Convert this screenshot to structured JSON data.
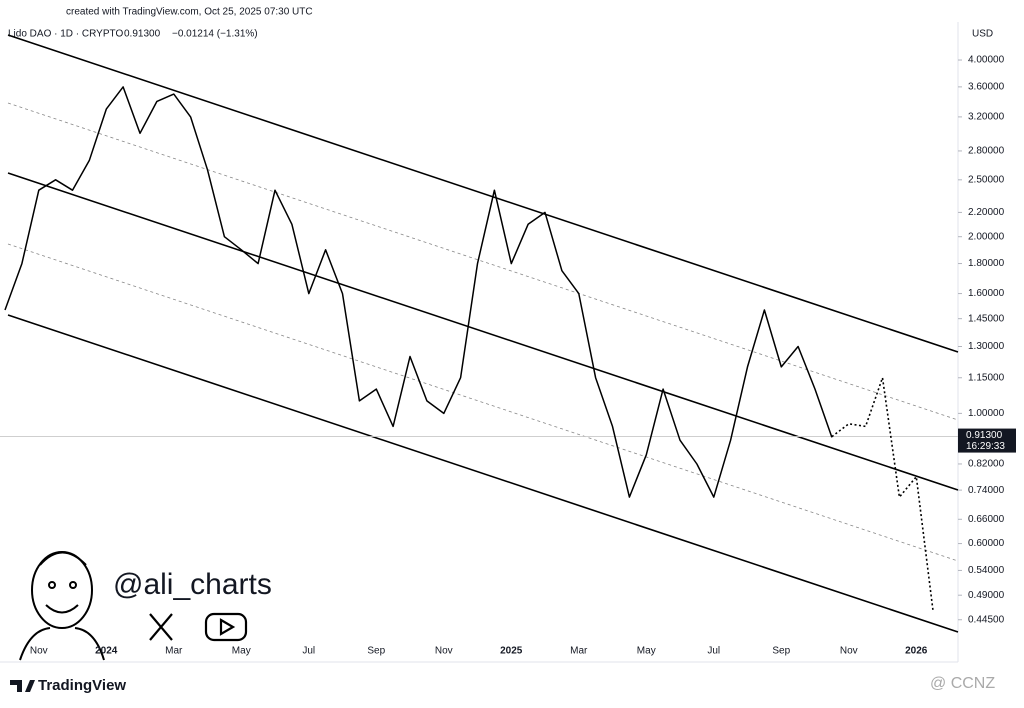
{
  "chart_data": {
    "type": "line",
    "credit": "created with TradingView.com, Oct 25, 2025 07:30 UTC",
    "symbol": "Lido DAO · 1D · CRYPTO",
    "price_text": "0.91300",
    "change_text": "−0.01214 (−1.31%)",
    "currency": "USD",
    "handle": "@ali_charts",
    "brand": "TradingView",
    "watermark": "@ CCNZ",
    "countdown": "16:29:33",
    "log_scale": true,
    "grid": false,
    "last_price": {
      "value": 0.913,
      "label": "0.91300"
    },
    "categories": [
      null,
      null,
      "Nov",
      null,
      null,
      null,
      "2024",
      null,
      null,
      null,
      "Mar",
      null,
      null,
      null,
      "May",
      null,
      null,
      null,
      "Jul",
      null,
      null,
      null,
      "Sep",
      null,
      null,
      null,
      "Nov",
      null,
      null,
      null,
      "2025",
      null,
      null,
      null,
      "Mar",
      null,
      null,
      null,
      "May",
      null,
      null,
      null,
      "Jul",
      null,
      null,
      null,
      "Sep",
      null,
      null,
      null,
      "Nov",
      null,
      null,
      null,
      "2026",
      null
    ],
    "series": [
      {
        "color": "#000000",
        "dash": false,
        "values": [
          1.5,
          1.8,
          2.4,
          2.5,
          2.4,
          2.7,
          3.3,
          3.6,
          3.0,
          3.4,
          3.5,
          3.2,
          2.6,
          2.0,
          1.9,
          1.8,
          2.4,
          2.1,
          1.6,
          1.9,
          1.6,
          1.05,
          1.1,
          0.95,
          1.25,
          1.05,
          1.0,
          1.15,
          1.8,
          2.4,
          1.8,
          2.1,
          2.2,
          1.75,
          1.6,
          1.15,
          0.95,
          0.72,
          0.85,
          1.1,
          0.9,
          0.82,
          0.72,
          0.9,
          1.2,
          1.5,
          1.2,
          1.3,
          1.1,
          0.91,
          null,
          null,
          null,
          null,
          null,
          null
        ]
      },
      {
        "color": "#000000",
        "dash": true,
        "values": [
          null,
          null,
          null,
          null,
          null,
          null,
          null,
          null,
          null,
          null,
          null,
          null,
          null,
          null,
          null,
          null,
          null,
          null,
          null,
          null,
          null,
          null,
          null,
          null,
          null,
          null,
          null,
          null,
          null,
          null,
          null,
          null,
          null,
          null,
          null,
          null,
          null,
          null,
          null,
          null,
          null,
          null,
          null,
          null,
          null,
          null,
          null,
          null,
          null,
          0.913,
          0.96,
          0.95,
          1.15,
          0.72,
          0.78,
          0.46
        ]
      }
    ],
    "ylim": [
      0.38,
      4.5
    ],
    "yticks": [
      {
        "value": 4.0,
        "label": "4.00000"
      },
      {
        "value": 3.6,
        "label": "3.60000"
      },
      {
        "value": 3.2,
        "label": "3.20000"
      },
      {
        "value": 2.8,
        "label": "2.80000"
      },
      {
        "value": 2.5,
        "label": "2.50000"
      },
      {
        "value": 2.2,
        "label": "2.20000"
      },
      {
        "value": 2.0,
        "label": "2.00000"
      },
      {
        "value": 1.8,
        "label": "1.80000"
      },
      {
        "value": 1.6,
        "label": "1.60000"
      },
      {
        "value": 1.45,
        "label": "1.45000"
      },
      {
        "value": 1.3,
        "label": "1.30000"
      },
      {
        "value": 1.15,
        "label": "1.15000"
      },
      {
        "value": 1.0,
        "label": "1.00000"
      },
      {
        "value": 0.82,
        "label": "0.82000"
      },
      {
        "value": 0.74,
        "label": "0.74000"
      },
      {
        "value": 0.66,
        "label": "0.66000"
      },
      {
        "value": 0.6,
        "label": "0.60000"
      },
      {
        "value": 0.54,
        "label": "0.54000"
      },
      {
        "value": 0.49,
        "label": "0.49000"
      },
      {
        "value": 0.445,
        "label": "0.44500"
      }
    ]
  }
}
